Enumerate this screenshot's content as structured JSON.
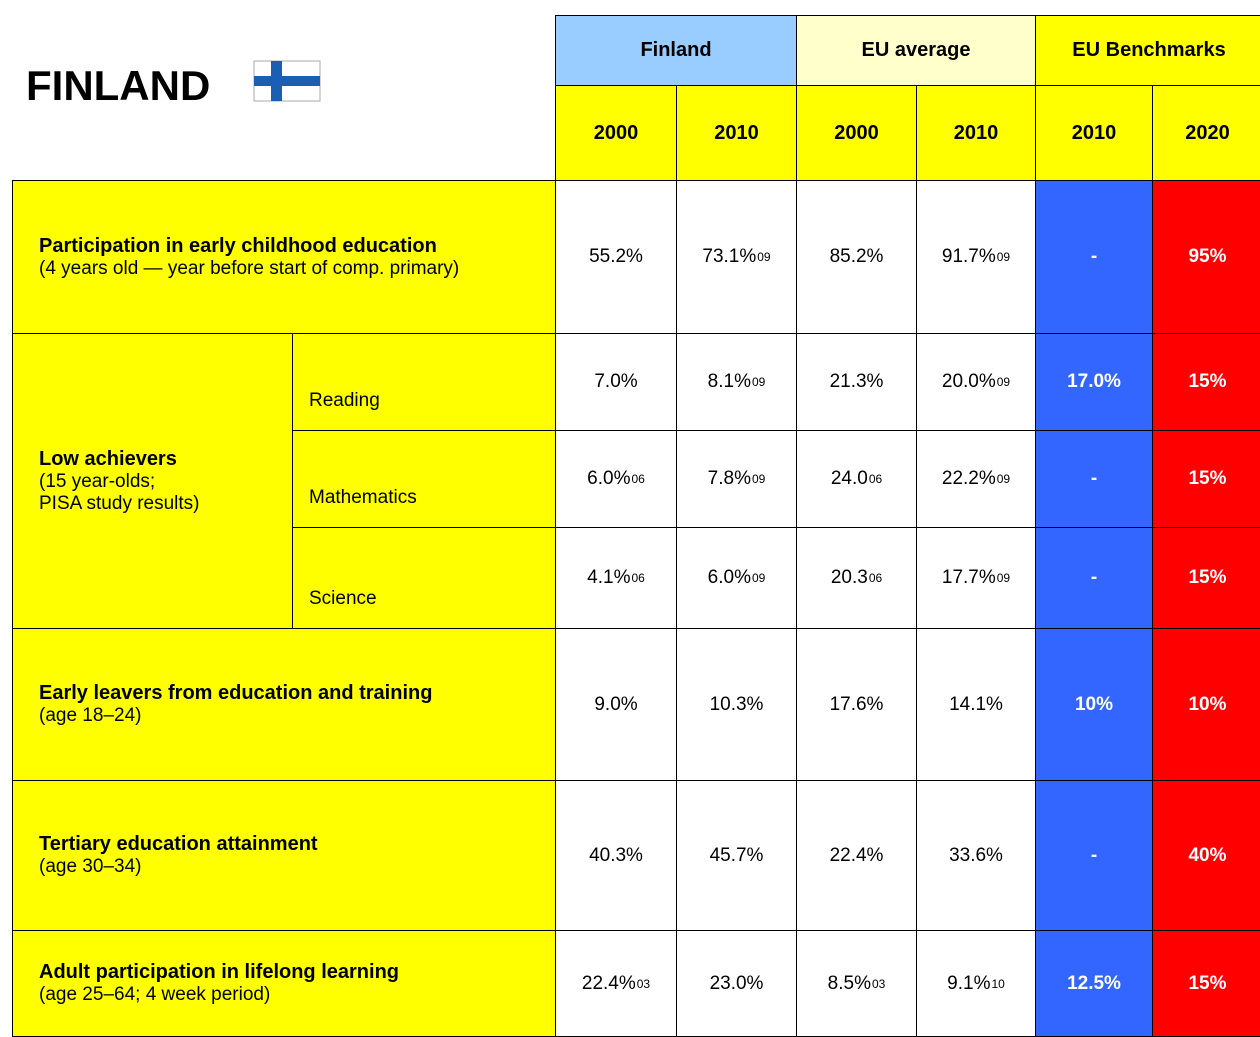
{
  "title": "FINLAND",
  "header": {
    "groups": [
      "Finland",
      "EU average",
      "EU Benchmarks"
    ],
    "years": [
      "2000",
      "2010",
      "2000",
      "2010",
      "2010",
      "2020"
    ]
  },
  "rows": [
    {
      "label": "Participation in early childhood education",
      "sublabel": [
        "(4 years old — year before start of comp. primary)"
      ],
      "cells": [
        {
          "text": "55.2%"
        },
        {
          "text": "73.1%",
          "sup": "09"
        },
        {
          "text": "85.2%"
        },
        {
          "text": "91.7%",
          "sup": "09"
        },
        {
          "text": "-"
        },
        {
          "text": "95%"
        }
      ]
    },
    {
      "label": "Low achievers",
      "sublabel": [
        "(15 year-olds;",
        "PISA study results)"
      ],
      "subrows": [
        {
          "label": "Reading",
          "cells": [
            {
              "text": "7.0%"
            },
            {
              "text": "8.1%",
              "sup": "09"
            },
            {
              "text": "21.3%"
            },
            {
              "text": "20.0%",
              "sup": "09"
            },
            {
              "text": "17.0%"
            },
            {
              "text": "15%"
            }
          ]
        },
        {
          "label": "Mathematics",
          "cells": [
            {
              "text": "6.0%",
              "sup": "06"
            },
            {
              "text": "7.8%",
              "sup": "09"
            },
            {
              "text": "24.0",
              "sup": "06"
            },
            {
              "text": "22.2%",
              "sup": "09"
            },
            {
              "text": "-"
            },
            {
              "text": "15%"
            }
          ]
        },
        {
          "label": "Science",
          "cells": [
            {
              "text": "4.1%",
              "sup": "06"
            },
            {
              "text": "6.0%",
              "sup": "09"
            },
            {
              "text": "20.3",
              "sup": "06"
            },
            {
              "text": "17.7%",
              "sup": "09"
            },
            {
              "text": "-"
            },
            {
              "text": "15%"
            }
          ]
        }
      ]
    },
    {
      "label": "Early leavers from education and training",
      "sublabel": [
        "(age 18–24)"
      ],
      "cells": [
        {
          "text": "9.0%"
        },
        {
          "text": "10.3%"
        },
        {
          "text": "17.6%"
        },
        {
          "text": "14.1%"
        },
        {
          "text": "10%"
        },
        {
          "text": "10%"
        }
      ]
    },
    {
      "label": "Tertiary education attainment",
      "sublabel": [
        "(age 30–34)"
      ],
      "cells": [
        {
          "text": "40.3%"
        },
        {
          "text": "45.7%"
        },
        {
          "text": "22.4%"
        },
        {
          "text": "33.6%"
        },
        {
          "text": "-"
        },
        {
          "text": "40%"
        }
      ]
    },
    {
      "label": "Adult participation in lifelong learning",
      "sublabel": [
        "(age 25–64; 4 week period)"
      ],
      "cells": [
        {
          "text": "22.4%",
          "sup": "03"
        },
        {
          "text": "23.0%"
        },
        {
          "text": "8.5%",
          "sup": "03"
        },
        {
          "text": "9.1%",
          "sup": "10"
        },
        {
          "text": "12.5%"
        },
        {
          "text": "15%"
        }
      ]
    }
  ]
}
